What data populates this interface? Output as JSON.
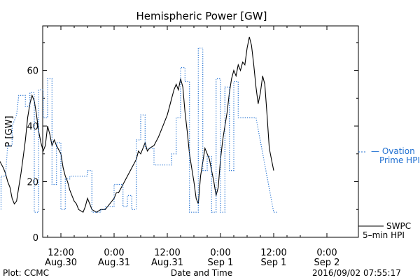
{
  "chart_data": {
    "type": "line",
    "title": "Hemispheric Power [GW]",
    "xlabel": "Date and Time",
    "ylabel": "P [GW]",
    "ylim": [
      0,
      76
    ],
    "xlim_hours": [
      -21,
      42.5
    ],
    "x_ticks": [
      {
        "h": -12,
        "line1": "12:00",
        "line2": "Aug.30"
      },
      {
        "h": 0,
        "line1": "0:00",
        "line2": "Aug.31"
      },
      {
        "h": 12,
        "line1": "12:00",
        "line2": "Aug.31"
      },
      {
        "h": 24,
        "line1": "0:00",
        "line2": "Sep 1"
      },
      {
        "h": 36,
        "line1": "12:00",
        "line2": "Sep 1"
      },
      {
        "h": 48,
        "line1": "0:00",
        "line2": "Sep 2"
      }
    ],
    "y_ticks": [
      0,
      20,
      40,
      60
    ],
    "grid": false,
    "series": [
      {
        "name": "SWPC 5-min HPI",
        "color": "#000000",
        "style": "solid",
        "points": [
          [
            -26.5,
            33
          ],
          [
            -26,
            28
          ],
          [
            -25,
            25
          ],
          [
            -24.5,
            23
          ],
          [
            -24,
            20
          ],
          [
            -23.5,
            18
          ],
          [
            -23,
            14
          ],
          [
            -22.5,
            12
          ],
          [
            -22,
            13
          ],
          [
            -21.5,
            18
          ],
          [
            -21,
            23
          ],
          [
            -20.5,
            29
          ],
          [
            -20,
            35
          ],
          [
            -19.5,
            43
          ],
          [
            -19,
            48
          ],
          [
            -18.5,
            51
          ],
          [
            -18,
            49
          ],
          [
            -17.5,
            44
          ],
          [
            -17,
            38
          ],
          [
            -16.5,
            34
          ],
          [
            -16,
            31
          ],
          [
            -15.5,
            33
          ],
          [
            -15,
            40
          ],
          [
            -14.5,
            37
          ],
          [
            -14,
            33
          ],
          [
            -13.5,
            35
          ],
          [
            -13,
            33
          ],
          [
            -12,
            30
          ],
          [
            -11.5,
            25
          ],
          [
            -11,
            22
          ],
          [
            -10.5,
            20
          ],
          [
            -10,
            17
          ],
          [
            -9.5,
            15
          ],
          [
            -9,
            13
          ],
          [
            -8.5,
            12
          ],
          [
            -8,
            10
          ],
          [
            -7,
            9
          ],
          [
            -6.5,
            11
          ],
          [
            -6,
            14
          ],
          [
            -5.5,
            12
          ],
          [
            -5,
            10
          ],
          [
            -4,
            9
          ],
          [
            -3,
            10
          ],
          [
            -2,
            10
          ],
          [
            -1,
            12
          ],
          [
            0,
            14
          ],
          [
            0.5,
            16
          ],
          [
            1,
            16
          ],
          [
            2,
            19
          ],
          [
            3,
            22
          ],
          [
            4,
            25
          ],
          [
            5,
            28
          ],
          [
            5.5,
            31
          ],
          [
            6,
            30
          ],
          [
            6.5,
            32
          ],
          [
            7,
            34
          ],
          [
            7.5,
            31
          ],
          [
            8,
            32
          ],
          [
            9,
            33
          ],
          [
            10,
            36
          ],
          [
            11,
            40
          ],
          [
            12,
            44
          ],
          [
            12.5,
            47
          ],
          [
            13,
            50
          ],
          [
            13.5,
            53
          ],
          [
            14,
            55
          ],
          [
            14.5,
            53
          ],
          [
            15,
            57
          ],
          [
            15.5,
            54
          ],
          [
            16,
            45
          ],
          [
            16.5,
            38
          ],
          [
            17,
            30
          ],
          [
            17.5,
            25
          ],
          [
            18,
            20
          ],
          [
            18.5,
            14
          ],
          [
            19,
            12
          ],
          [
            19.5,
            22
          ],
          [
            20,
            27
          ],
          [
            20.5,
            32
          ],
          [
            21,
            30
          ],
          [
            21.5,
            28
          ],
          [
            22,
            24
          ],
          [
            22.5,
            20
          ],
          [
            23,
            15
          ],
          [
            23.5,
            18
          ],
          [
            24,
            28
          ],
          [
            24.5,
            35
          ],
          [
            25,
            40
          ],
          [
            25.5,
            45
          ],
          [
            26,
            52
          ],
          [
            26.5,
            57
          ],
          [
            27,
            60
          ],
          [
            27.5,
            58
          ],
          [
            28,
            62
          ],
          [
            28.5,
            60
          ],
          [
            29,
            63
          ],
          [
            29.5,
            62
          ],
          [
            30,
            68
          ],
          [
            30.5,
            72
          ],
          [
            31,
            69
          ],
          [
            31.5,
            62
          ],
          [
            32,
            54
          ],
          [
            32.5,
            48
          ],
          [
            33,
            52
          ],
          [
            33.5,
            58
          ],
          [
            34,
            55
          ],
          [
            34.5,
            44
          ],
          [
            35,
            32
          ],
          [
            35.5,
            28
          ],
          [
            36,
            24
          ]
        ]
      },
      {
        "name": "Ovation Prime HPI",
        "color": "#1f6fd1",
        "style": "dotted",
        "points": [
          [
            -26.5,
            10
          ],
          [
            -25.5,
            10
          ],
          [
            -25.5,
            22
          ],
          [
            -24.5,
            22
          ],
          [
            -24,
            33
          ],
          [
            -23,
            33
          ],
          [
            -23,
            40
          ],
          [
            -22,
            44
          ],
          [
            -21.5,
            51
          ],
          [
            -20,
            51
          ],
          [
            -20,
            47
          ],
          [
            -19,
            47
          ],
          [
            -19,
            52
          ],
          [
            -18,
            52
          ],
          [
            -18,
            9
          ],
          [
            -17,
            9
          ],
          [
            -17,
            53
          ],
          [
            -16,
            53
          ],
          [
            -16,
            43
          ],
          [
            -15,
            43
          ],
          [
            -15,
            57
          ],
          [
            -14,
            57
          ],
          [
            -14,
            19
          ],
          [
            -13,
            19
          ],
          [
            -13,
            34
          ],
          [
            -12,
            34
          ],
          [
            -12,
            10
          ],
          [
            -11,
            10
          ],
          [
            -11,
            21
          ],
          [
            -10,
            21
          ],
          [
            -10,
            22
          ],
          [
            -6,
            22
          ],
          [
            -6,
            24
          ],
          [
            -5,
            24
          ],
          [
            -5,
            9
          ],
          [
            -3,
            9
          ],
          [
            -3,
            10
          ],
          [
            -2,
            10
          ],
          [
            -2,
            11
          ],
          [
            0,
            11
          ],
          [
            0,
            19
          ],
          [
            2,
            19
          ],
          [
            2,
            11
          ],
          [
            3,
            11
          ],
          [
            3,
            15
          ],
          [
            4,
            15
          ],
          [
            4,
            10
          ],
          [
            5,
            10
          ],
          [
            5,
            35
          ],
          [
            6,
            35
          ],
          [
            6,
            44
          ],
          [
            7,
            44
          ],
          [
            7,
            32
          ],
          [
            9,
            32
          ],
          [
            9,
            26
          ],
          [
            13,
            26
          ],
          [
            13,
            30
          ],
          [
            14,
            30
          ],
          [
            14,
            43
          ],
          [
            15,
            43
          ],
          [
            15,
            61
          ],
          [
            16,
            61
          ],
          [
            16,
            56
          ],
          [
            17,
            56
          ],
          [
            17,
            9
          ],
          [
            19,
            9
          ],
          [
            19,
            68
          ],
          [
            20,
            68
          ],
          [
            20,
            24
          ],
          [
            21,
            24
          ],
          [
            21,
            29
          ],
          [
            22,
            29
          ],
          [
            22,
            9
          ],
          [
            23,
            9
          ],
          [
            23,
            57
          ],
          [
            24,
            57
          ],
          [
            24,
            9
          ],
          [
            25,
            9
          ],
          [
            25,
            54
          ],
          [
            26,
            54
          ],
          [
            26,
            24
          ],
          [
            27,
            24
          ],
          [
            27,
            56
          ],
          [
            28,
            56
          ],
          [
            28,
            43
          ],
          [
            32,
            43
          ],
          [
            36,
            9
          ],
          [
            37,
            9
          ]
        ]
      }
    ],
    "legend": [
      {
        "text1": "— Ovation",
        "text2": "Prime HPI",
        "color": "#1f6fd1"
      },
      {
        "text1": "SWPC",
        "text2": "5–min HPI",
        "color": "#000000"
      }
    ]
  },
  "footer": {
    "left": "Plot: CCMC",
    "center": "Date and Time",
    "right": "2016/09/02 07:55:17"
  }
}
